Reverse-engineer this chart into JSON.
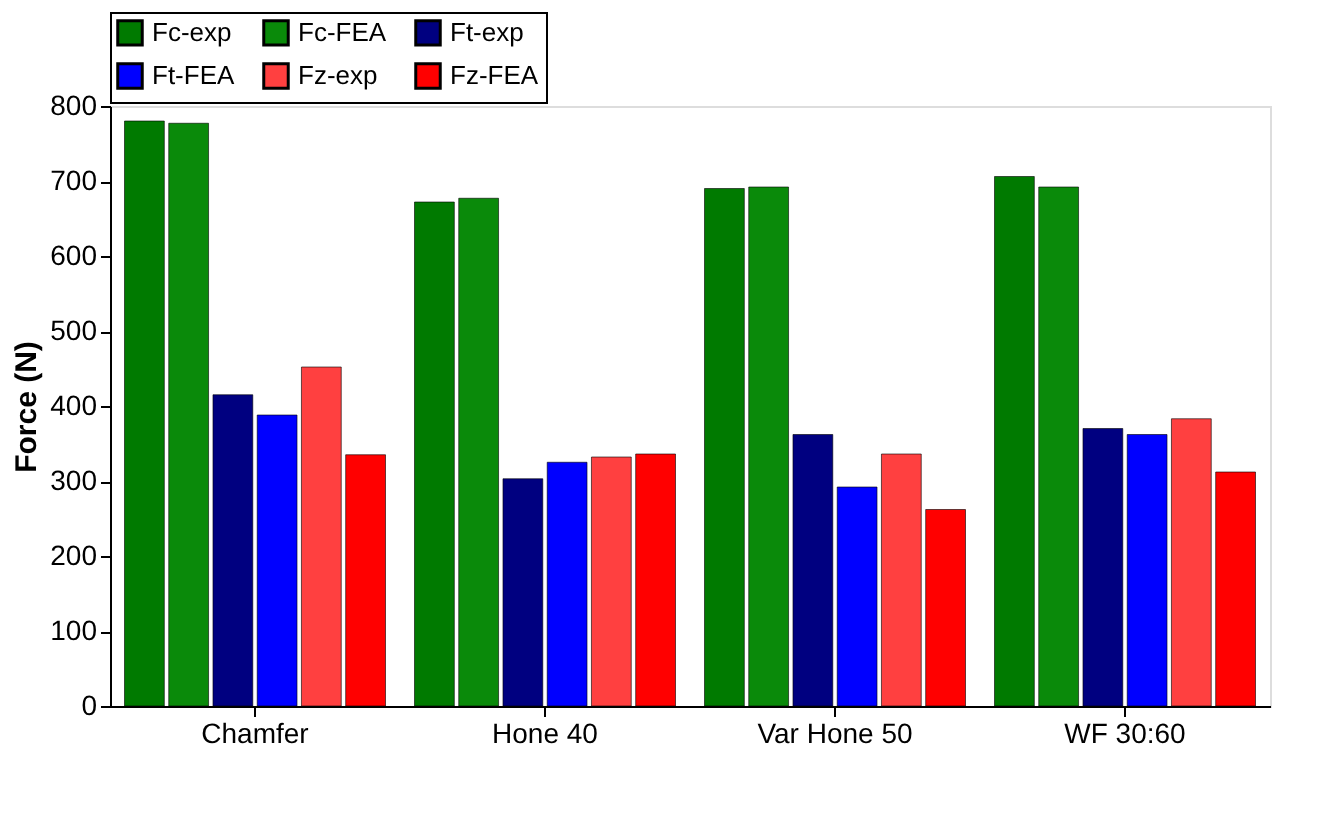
{
  "chart_data": {
    "type": "bar",
    "ylabel": "Force (N)",
    "categories": [
      "Chamfer",
      "Hone 40",
      "Var Hone 50",
      "WF 30:60"
    ],
    "series": [
      {
        "name": "Fc-exp",
        "color": "#007a00",
        "values": [
          780,
          672,
          690,
          706
        ]
      },
      {
        "name": "Fc-FEA",
        "color": "#0a8a0a",
        "values": [
          777,
          677,
          692,
          692
        ]
      },
      {
        "name": "Ft-exp",
        "color": "#000080",
        "values": [
          415,
          303,
          362,
          370
        ]
      },
      {
        "name": "Ft-FEA",
        "color": "#0000ff",
        "values": [
          388,
          325,
          292,
          362
        ]
      },
      {
        "name": "Fz-exp",
        "color": "#ff4040",
        "values": [
          452,
          332,
          336,
          383
        ]
      },
      {
        "name": "Fz-FEA",
        "color": "#ff0000",
        "values": [
          335,
          336,
          262,
          312
        ]
      }
    ],
    "ylim": [
      0,
      800
    ],
    "yticks": [
      0,
      100,
      200,
      300,
      400,
      500,
      600,
      700,
      800
    ],
    "grid": false,
    "legend": "top"
  }
}
